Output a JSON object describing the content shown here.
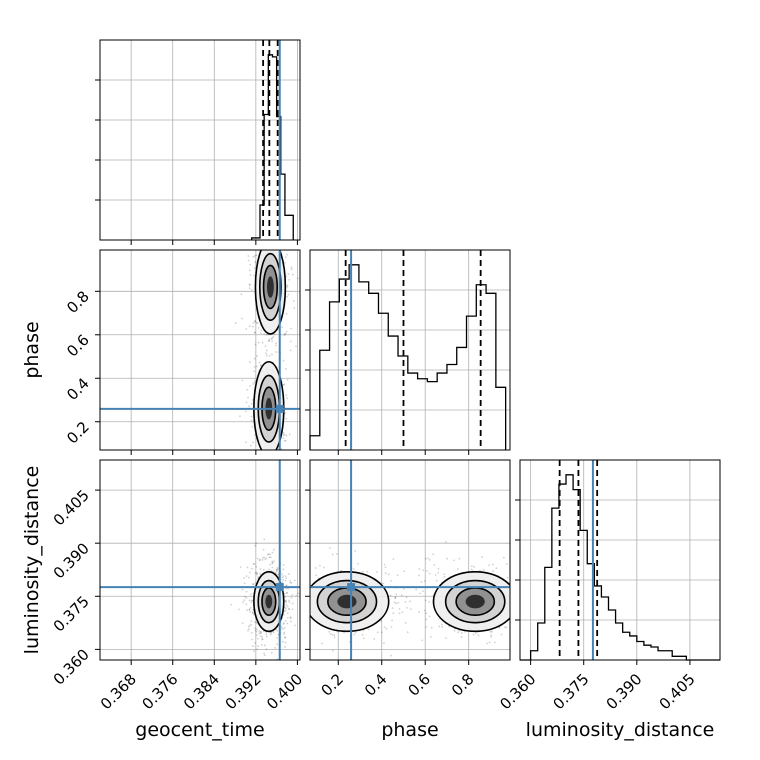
{
  "chart_data": {
    "type": "corner",
    "parameters": [
      "geocent_time",
      "phase",
      "luminosity_distance"
    ],
    "axis_labels": {
      "geocent_time": "geocent_time",
      "phase": "phase",
      "luminosity_distance": "luminosity_distance"
    },
    "ranges": {
      "geocent_time": [
        0.362,
        0.4005
      ],
      "phase": [
        0.07,
        0.99
      ],
      "luminosity_distance": [
        0.357,
        0.4135
      ]
    },
    "tick_labels": {
      "geocent_time": [
        "0.368",
        "0.376",
        "0.384",
        "0.392",
        "0.400"
      ],
      "phase": [
        "0.2",
        "0.4",
        "0.6",
        "0.8"
      ],
      "luminosity_distance": [
        "0.360",
        "0.375",
        "0.390",
        "0.405"
      ]
    },
    "truths": {
      "geocent_time": 0.3966,
      "phase": 0.259,
      "luminosity_distance": 0.3776
    },
    "quantiles": {
      "geocent_time": [
        0.3934,
        0.3946,
        0.3962
      ],
      "phase": [
        0.234,
        0.5,
        0.855
      ],
      "luminosity_distance": [
        0.3682,
        0.3735,
        0.3788
      ]
    },
    "histograms": {
      "geocent_time": {
        "edges": [
          0.3912,
          0.3928,
          0.3936,
          0.3944,
          0.3952,
          0.396,
          0.3968,
          0.3976,
          0.3992
        ],
        "counts": [
          0.05,
          0.85,
          3.05,
          4.5,
          4.45,
          3.0,
          1.6,
          0.6
        ]
      },
      "phase": {
        "edges": [
          0.07,
          0.115,
          0.16,
          0.205,
          0.25,
          0.295,
          0.34,
          0.385,
          0.43,
          0.475,
          0.52,
          0.565,
          0.61,
          0.655,
          0.7,
          0.745,
          0.79,
          0.835,
          0.88,
          0.925,
          0.97
        ],
        "counts": [
          0.05,
          0.35,
          0.52,
          0.6,
          0.65,
          0.59,
          0.55,
          0.48,
          0.4,
          0.33,
          0.27,
          0.25,
          0.24,
          0.27,
          0.3,
          0.36,
          0.47,
          0.58,
          0.55,
          0.22
        ]
      },
      "luminosity_distance": {
        "edges": [
          0.357,
          0.36,
          0.362,
          0.364,
          0.366,
          0.368,
          0.37,
          0.372,
          0.374,
          0.376,
          0.378,
          0.38,
          0.382,
          0.384,
          0.386,
          0.388,
          0.39,
          0.392,
          0.394,
          0.396,
          0.4,
          0.404,
          0.4135
        ],
        "counts": [
          0,
          0.05,
          0.2,
          0.5,
          0.82,
          0.95,
          1.0,
          0.92,
          0.7,
          0.52,
          0.4,
          0.34,
          0.27,
          0.2,
          0.15,
          0.13,
          0.1,
          0.08,
          0.07,
          0.05,
          0.02,
          0
        ]
      }
    },
    "density_modes": [
      {
        "pair": [
          "geocent_time",
          "phase"
        ],
        "centers": [
          [
            0.3945,
            0.26
          ],
          [
            0.3948,
            0.82
          ]
        ],
        "spread": [
          0.0012,
          0.09
        ]
      },
      {
        "pair": [
          "geocent_time",
          "luminosity_distance"
        ],
        "centers": [
          [
            0.3945,
            0.3735
          ]
        ],
        "spread": [
          0.0012,
          0.0035
        ]
      },
      {
        "pair": [
          "phase",
          "luminosity_distance"
        ],
        "centers": [
          [
            0.24,
            0.3735
          ],
          [
            0.83,
            0.3735
          ]
        ],
        "spread": [
          0.08,
          0.0035
        ]
      }
    ],
    "grid": true,
    "truth_color": "#4682b4",
    "line_color": "#000000"
  }
}
